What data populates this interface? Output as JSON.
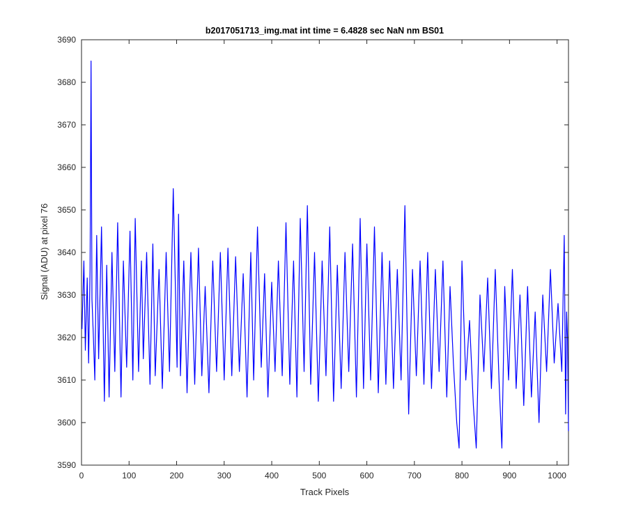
{
  "chart_data": {
    "type": "line",
    "title": "b2017051713_img.mat int time = 6.4828 sec  NaN nm BS01",
    "xlabel": "Track Pixels",
    "ylabel": "Signal (ADU) at pixel 76",
    "xlim": [
      0,
      1024
    ],
    "ylim": [
      3590,
      3690
    ],
    "xticks": [
      0,
      100,
      200,
      300,
      400,
      500,
      600,
      700,
      800,
      900,
      1000
    ],
    "yticks": [
      3590,
      3600,
      3610,
      3620,
      3630,
      3640,
      3650,
      3660,
      3670,
      3680,
      3690
    ],
    "grid": false,
    "line_color": "#0000ff",
    "series": [
      {
        "x": [
          1,
          5,
          8,
          12,
          15,
          18,
          20,
          22,
          25,
          28,
          32,
          36,
          42,
          48,
          53,
          58,
          64,
          70,
          76,
          83,
          88,
          95,
          102,
          108,
          113,
          120,
          126,
          130,
          137,
          144,
          150,
          155,
          163,
          170,
          178,
          185,
          193,
          201,
          204,
          208,
          215,
          222,
          230,
          238,
          246,
          253,
          260,
          268,
          276,
          284,
          292,
          300,
          308,
          316,
          324,
          332,
          340,
          348,
          356,
          362,
          370,
          378,
          385,
          392,
          400,
          407,
          414,
          422,
          430,
          438,
          446,
          453,
          460,
          468,
          475,
          482,
          490,
          498,
          506,
          514,
          522,
          530,
          538,
          546,
          554,
          562,
          570,
          578,
          586,
          593,
          600,
          608,
          616,
          624,
          632,
          640,
          648,
          656,
          664,
          672,
          680,
          688,
          696,
          704,
          712,
          720,
          728,
          736,
          744,
          752,
          760,
          768,
          775,
          782,
          789,
          794,
          800,
          808,
          816,
          824,
          830,
          838,
          846,
          854,
          862,
          870,
          878,
          884,
          890,
          898,
          906,
          914,
          922,
          930,
          938,
          946,
          954,
          962,
          970,
          978,
          986,
          994,
          1002,
          1010,
          1015,
          1018,
          1020,
          1022,
          1024
        ],
        "values": [
          3622,
          3638,
          3617,
          3634,
          3614,
          3636,
          3685,
          3629,
          3620,
          3610,
          3644,
          3615,
          3646,
          3605,
          3637,
          3606,
          3640,
          3612,
          3647,
          3606,
          3638,
          3613,
          3645,
          3610,
          3648,
          3612,
          3638,
          3615,
          3640,
          3609,
          3642,
          3611,
          3636,
          3608,
          3640,
          3612,
          3655,
          3613,
          3649,
          3611,
          3638,
          3607,
          3640,
          3609,
          3641,
          3611,
          3632,
          3607,
          3638,
          3612,
          3640,
          3610,
          3641,
          3611,
          3639,
          3612,
          3635,
          3606,
          3640,
          3610,
          3646,
          3613,
          3635,
          3606,
          3633,
          3612,
          3638,
          3611,
          3647,
          3609,
          3638,
          3606,
          3648,
          3612,
          3651,
          3609,
          3640,
          3605,
          3638,
          3611,
          3646,
          3605,
          3637,
          3608,
          3640,
          3612,
          3642,
          3606,
          3648,
          3608,
          3642,
          3610,
          3646,
          3607,
          3640,
          3609,
          3638,
          3608,
          3636,
          3610,
          3651,
          3602,
          3636,
          3611,
          3638,
          3609,
          3640,
          3608,
          3636,
          3612,
          3638,
          3606,
          3632,
          3614,
          3600,
          3594,
          3638,
          3610,
          3624,
          3604,
          3594,
          3630,
          3612,
          3634,
          3608,
          3636,
          3610,
          3594,
          3632,
          3610,
          3636,
          3608,
          3630,
          3604,
          3632,
          3606,
          3626,
          3600,
          3630,
          3612,
          3636,
          3614,
          3628,
          3612,
          3644,
          3602,
          3626,
          3620,
          3598
        ]
      }
    ]
  }
}
